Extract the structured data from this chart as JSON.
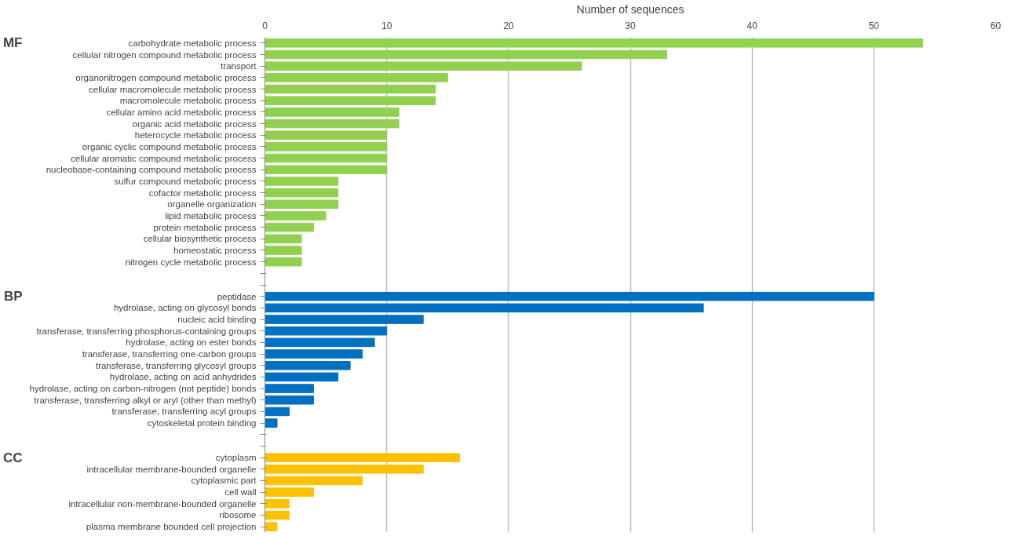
{
  "chart_data": {
    "type": "bar",
    "orientation": "horizontal",
    "xlabel": "Number of sequences",
    "xlim": [
      0,
      60
    ],
    "xticks": [
      0,
      10,
      20,
      30,
      40,
      50,
      60
    ],
    "grid": "x",
    "annotations": [
      "MF",
      "BP",
      "CC"
    ],
    "categories": [
      "carbohydrate metabolic process",
      "cellular nitrogen compound metabolic process",
      "transport",
      "organonitrogen compound metabolic process",
      "cellular macromolecule metabolic process",
      "macromolecule metabolic process",
      "cellular amino acid metabolic process",
      "organic acid metabolic process",
      "heterocycle metabolic process",
      "organic cyclic compound metabolic process",
      "cellular aromatic compound metabolic process",
      "nucleobase-containing compound metabolic process",
      "sulfur compound metabolic process",
      "cofactor metabolic process",
      "organelle organization",
      "lipid metabolic process",
      "protein metabolic process",
      "cellular biosynthetic process",
      "homeostatic process",
      "nitrogen cycle metabolic process",
      null,
      null,
      "peptidase",
      "hydrolase, acting on glycosyl bonds",
      "nucleic acid binding",
      "transferase, transferring phosphorus-containing groups",
      "hydrolase, acting on ester bonds",
      "transferase, transferring one-carbon groups",
      "transferase, transferring glycosyl groups",
      "hydrolase, acting on acid anhydrides",
      "hydrolase, acting on carbon-nitrogen (not peptide) bonds",
      "transferase, transferring alkyl or aryl (other than methyl)",
      "transferase, transferring acyl groups",
      "cytoskeletal protein binding",
      null,
      null,
      "cytoplasm",
      "intracellular membrane-bounded organelle",
      "cytoplasmic part",
      "cell wall",
      "intracellular non-membrane-bounded organelle",
      "ribosome",
      "plasma membrane bounded cell projection"
    ],
    "series": [
      {
        "color": "#92d050",
        "values": [
          54,
          33,
          26,
          15,
          14,
          14,
          11,
          11,
          10,
          10,
          10,
          10,
          6,
          6,
          6,
          5,
          4,
          3,
          3,
          3,
          null,
          null,
          null,
          null,
          null,
          null,
          null,
          null,
          null,
          null,
          null,
          null,
          null,
          null,
          null,
          null,
          null,
          null,
          null,
          null,
          null,
          null,
          null
        ]
      },
      {
        "color": "#0070c0",
        "values": [
          null,
          null,
          null,
          null,
          null,
          null,
          null,
          null,
          null,
          null,
          null,
          null,
          null,
          null,
          null,
          null,
          null,
          null,
          null,
          null,
          null,
          null,
          50,
          36,
          13,
          10,
          9,
          8,
          7,
          6,
          4,
          4,
          2,
          1,
          null,
          null,
          null,
          null,
          null,
          null,
          null,
          null,
          null
        ]
      },
      {
        "color": "#ffc000",
        "values": [
          null,
          null,
          null,
          null,
          null,
          null,
          null,
          null,
          null,
          null,
          null,
          null,
          null,
          null,
          null,
          null,
          null,
          null,
          null,
          null,
          null,
          null,
          null,
          null,
          null,
          null,
          null,
          null,
          null,
          null,
          null,
          null,
          null,
          null,
          null,
          null,
          16,
          13,
          8,
          4,
          2,
          2,
          1
        ]
      }
    ]
  }
}
